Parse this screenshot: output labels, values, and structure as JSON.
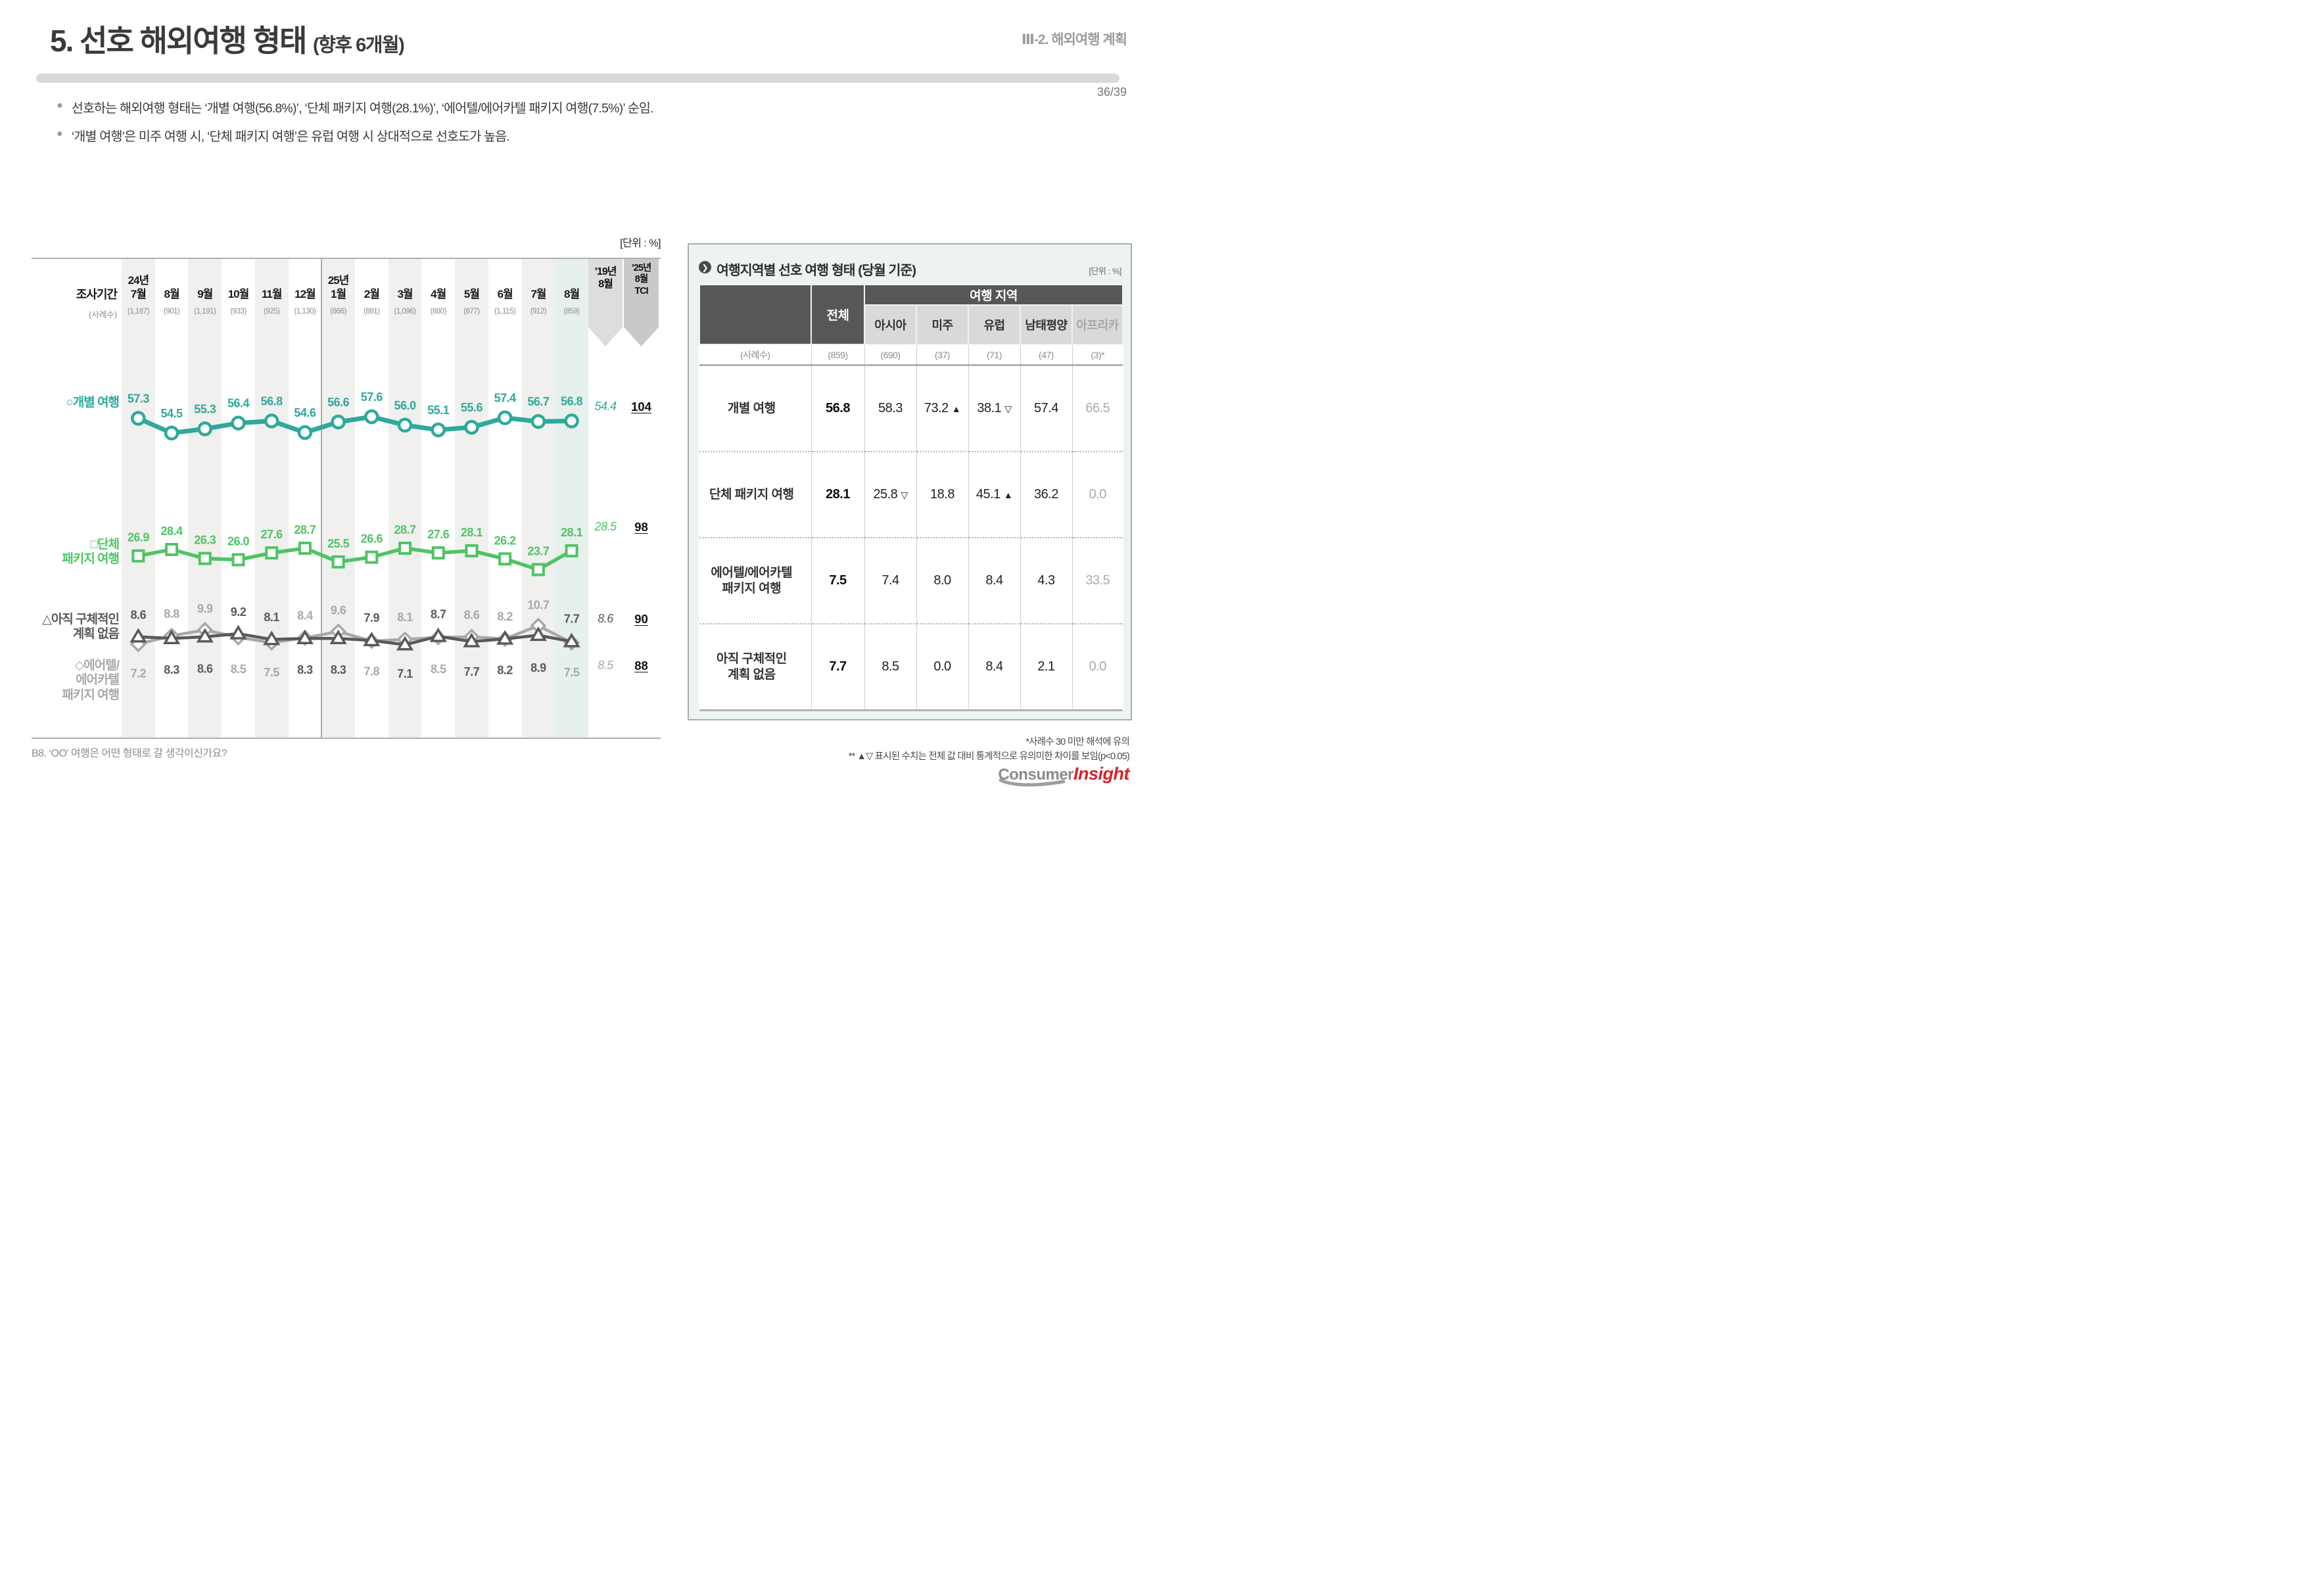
{
  "header": {
    "title": "5. 선호 해외여행 형태",
    "title_suffix": "(향후 6개월)",
    "section": "Ⅲ-2. 해외여행 계획",
    "page_num": "36/39"
  },
  "bullets": [
    "선호하는 해외여행 형태는 ‘개별 여행(56.8%)’, ‘단체 패키지 여행(28.1%)’, ‘에어텔/에어카텔 패키지 여행(7.5%)’ 순임.",
    "‘개별 여행’은 미주 여행 시, ‘단체 패키지 여행’은 유럽 여행 시 상대적으로 선호도가 높음."
  ],
  "trend": {
    "unit": "[단위 : %]",
    "period_label": "조사기간",
    "sample_label": "(사례수)",
    "ref_header": [
      "’19년",
      "8월"
    ],
    "tci_header": [
      "’25년",
      "8월",
      "TCI"
    ],
    "periods": [
      {
        "year": "24년",
        "month": "7월",
        "n": "(1,187)"
      },
      {
        "month": "8월",
        "n": "(901)"
      },
      {
        "month": "9월",
        "n": "(1,191)"
      },
      {
        "month": "10월",
        "n": "(933)"
      },
      {
        "month": "11월",
        "n": "(925)"
      },
      {
        "month": "12월",
        "n": "(1,130)"
      },
      {
        "year": "25년",
        "month": "1월",
        "n": "(866)"
      },
      {
        "month": "2월",
        "n": "(881)"
      },
      {
        "month": "3월",
        "n": "(1,096)"
      },
      {
        "month": "4월",
        "n": "(880)"
      },
      {
        "month": "5월",
        "n": "(877)"
      },
      {
        "month": "6월",
        "n": "(1,115)"
      },
      {
        "month": "7월",
        "n": "(912)"
      },
      {
        "month": "8월",
        "n": "(859)"
      }
    ],
    "question": "B8. ‘OO’ 여행은 어떤 형태로 갈 생각이신가요?"
  },
  "chart_data": [
    {
      "type": "line",
      "title": "선호 해외여행 형태 추이 (향후 6개월)",
      "unit": "%",
      "x": [
        "24년 7월",
        "24년 8월",
        "24년 9월",
        "24년 10월",
        "24년 11월",
        "24년 12월",
        "25년 1월",
        "25년 2월",
        "25년 3월",
        "25년 4월",
        "25년 5월",
        "25년 6월",
        "25년 7월",
        "25년 8월"
      ],
      "sample_sizes": [
        1187,
        901,
        1191,
        933,
        925,
        1130,
        866,
        881,
        1096,
        880,
        877,
        1115,
        912,
        859
      ],
      "legend_position": "left",
      "grid": false,
      "series": [
        {
          "key": "individual",
          "name": "○개별 여행",
          "label_lines": [
            "○개별 여행"
          ],
          "marker": "circle",
          "values": [
            57.3,
            54.5,
            55.3,
            56.4,
            56.8,
            54.6,
            56.6,
            57.6,
            56.0,
            55.1,
            55.6,
            57.4,
            56.7,
            56.8
          ],
          "ref_19aug": "54.4",
          "tci": "104"
        },
        {
          "key": "group",
          "name": "□단체 패키지 여행",
          "label_lines": [
            "□단체",
            "패키지 여행"
          ],
          "marker": "square",
          "values": [
            26.9,
            28.4,
            26.3,
            26.0,
            27.6,
            28.7,
            25.5,
            26.6,
            28.7,
            27.6,
            28.1,
            26.2,
            23.7,
            28.1
          ],
          "ref_19aug": "28.5",
          "tci": "98"
        },
        {
          "key": "noplan",
          "name": "△아직 구체적인 계획 없음",
          "label_lines": [
            "△아직 구체적인",
            "계획 없음"
          ],
          "marker": "triangle",
          "values": [
            8.6,
            8.3,
            8.6,
            9.2,
            8.1,
            8.3,
            8.3,
            7.9,
            7.1,
            8.7,
            7.7,
            8.2,
            8.9,
            7.7
          ],
          "ref_19aug": "8.6",
          "tci": "90"
        },
        {
          "key": "airtel",
          "name": "◇에어텔/에어카텔 패키지 여행",
          "label_lines": [
            "◇에어텔/",
            "에어카텔",
            "패키지 여행"
          ],
          "marker": "diamond",
          "values": [
            7.2,
            8.8,
            9.9,
            8.5,
            7.5,
            8.4,
            9.6,
            7.8,
            8.1,
            8.5,
            8.6,
            8.2,
            10.7,
            7.5
          ],
          "ref_19aug": "8.5",
          "tci": "88"
        }
      ]
    },
    {
      "type": "table",
      "title": "여행지역별 선호 여행 형태 (당월 기준)",
      "unit": "%",
      "columns": [
        "전체",
        "아시아",
        "미주",
        "유럽",
        "남태평양",
        "아프리카"
      ],
      "sample_sizes": [
        "(859)",
        "(690)",
        "(37)",
        "(71)",
        "(47)",
        "(3)*"
      ],
      "rows": [
        {
          "label": "개별 여행",
          "values": [
            "56.8",
            "58.3",
            "73.2 ▲",
            "38.1 ▽",
            "57.4",
            "66.5"
          ]
        },
        {
          "label": "단체 패키지 여행",
          "values": [
            "28.1",
            "25.8 ▽",
            "18.8",
            "45.1 ▲",
            "36.2",
            "0.0"
          ]
        },
        {
          "label": "에어텔/에어카텔 패키지 여행",
          "values": [
            "7.5",
            "7.4",
            "8.0",
            "8.4",
            "4.3",
            "33.5"
          ]
        },
        {
          "label": "아직 구체적인 계획 없음",
          "values": [
            "7.7",
            "8.5",
            "0.0",
            "8.4",
            "2.1",
            "0.0"
          ]
        }
      ]
    }
  ],
  "panel": {
    "title": "여행지역별 선호 여행 형태 (당월 기준)",
    "unit": "[단위 : %]",
    "region_group_header": "여행 지역",
    "total_header": "전체",
    "regions": [
      "아시아",
      "미주",
      "유럽",
      "남태평양",
      "아프리카"
    ],
    "sample_label": "(사례수)",
    "samples": [
      "(859)",
      "(690)",
      "(37)",
      "(71)",
      "(47)",
      "(3)*"
    ],
    "rows": [
      {
        "label_lines": [
          "개별 여행"
        ],
        "total": "56.8",
        "cells": [
          "58.3",
          "73.2 ▲",
          "38.1 ▽",
          "57.4",
          "66.5"
        ]
      },
      {
        "label_lines": [
          "단체 패키지 여행"
        ],
        "total": "28.1",
        "cells": [
          "25.8 ▽",
          "18.8",
          "45.1 ▲",
          "36.2",
          "0.0"
        ]
      },
      {
        "label_lines": [
          "에어텔/에어카텔",
          "패키지 여행"
        ],
        "total": "7.5",
        "cells": [
          "7.4",
          "8.0",
          "8.4",
          "4.3",
          "33.5"
        ]
      },
      {
        "label_lines": [
          "아직 구체적인",
          "계획 없음"
        ],
        "total": "7.7",
        "cells": [
          "8.5",
          "0.0",
          "8.4",
          "2.1",
          "0.0"
        ]
      }
    ]
  },
  "footnotes": [
    "*사례수 30 미만 해석에 유의",
    "** ▲▽ 표시된 수치는 전체 값 대비 통계적으로 유의미한 차이를 보임(p<0.05)"
  ],
  "logo": {
    "consumer": "Consumer",
    "insight": "Insight"
  },
  "colors": {
    "teal": "#2ea99c",
    "green": "#4fc464",
    "dark_gray": "#595959",
    "light_gray": "#a8a8a8",
    "stripe": "#f0f0ee",
    "mint": "#e6f1ed",
    "pennant_ref": "#dddddd",
    "pennant_tci": "#c9c9c9",
    "panel_bg": "#edf4f0",
    "header_dark": "#575757",
    "header_light": "#d9d9d9",
    "logo_red": "#d62128"
  }
}
